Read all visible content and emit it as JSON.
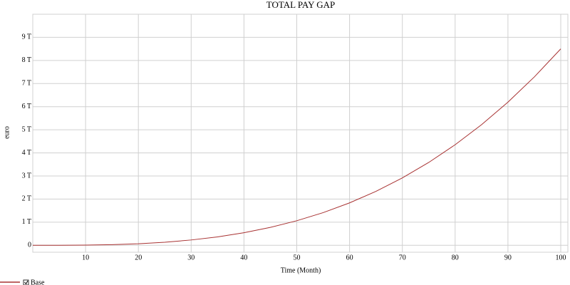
{
  "chart_data": {
    "type": "line",
    "title": "TOTAL PAY GAP",
    "x_label": "Time (Month)",
    "y_label": "euro",
    "x": [
      0,
      5,
      10,
      15,
      20,
      25,
      30,
      35,
      40,
      45,
      50,
      55,
      60,
      65,
      70,
      75,
      80,
      85,
      90,
      95,
      100
    ],
    "series": [
      {
        "name": "Base",
        "color": "#a83232",
        "values": [
          0,
          0.001,
          0.0085,
          0.029,
          0.068,
          0.133,
          0.23,
          0.364,
          0.544,
          0.775,
          1.063,
          1.414,
          1.836,
          2.334,
          2.916,
          3.586,
          4.352,
          5.22,
          6.197,
          7.288,
          8.5
        ]
      }
    ],
    "xlim": [
      0,
      100
    ],
    "xticks": [
      10,
      20,
      30,
      40,
      50,
      60,
      70,
      80,
      90,
      100
    ],
    "ylim": [
      -0.3,
      10
    ],
    "yticks": [
      0,
      {
        "value": 1,
        "label": "1 T"
      },
      {
        "value": 2,
        "label": "2 T"
      },
      {
        "value": 3,
        "label": "3 T"
      },
      {
        "value": 4,
        "label": "4 T"
      },
      {
        "value": 5,
        "label": "5 T"
      },
      {
        "value": 6,
        "label": "6 T"
      },
      {
        "value": 7,
        "label": "7 T"
      },
      {
        "value": 8,
        "label": "8 T"
      },
      {
        "value": 9,
        "label": "9 T"
      }
    ],
    "grid": true
  }
}
